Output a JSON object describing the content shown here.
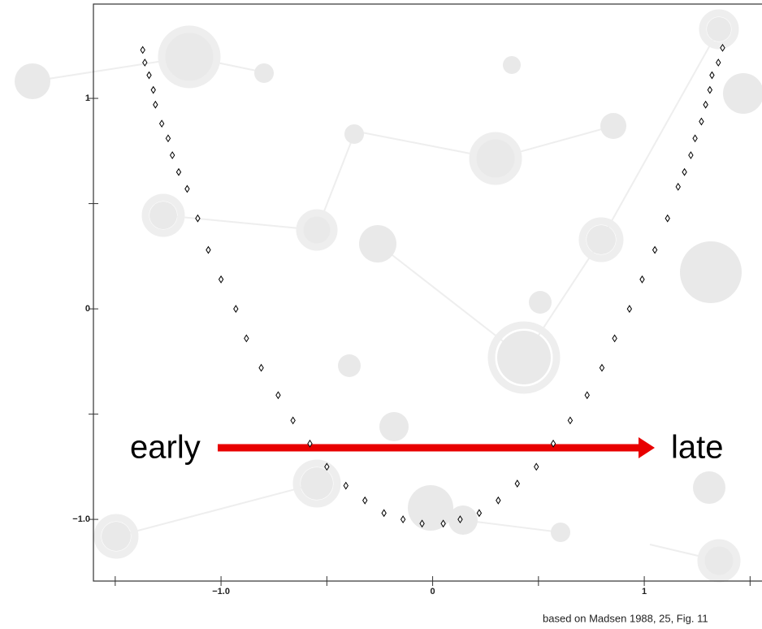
{
  "chart_data": {
    "type": "scatter",
    "annotations": [
      "early",
      "late"
    ],
    "source": "based on Madsen 1988, 25, Fig. 11",
    "marker": "diamond",
    "color": "#000000",
    "x": [
      -1.37,
      -1.36,
      -1.34,
      -1.32,
      -1.31,
      -1.28,
      -1.25,
      -1.23,
      -1.2,
      -1.16,
      -1.11,
      -1.06,
      -1.0,
      -0.93,
      -0.88,
      -0.81,
      -0.73,
      -0.66,
      -0.58,
      -0.5,
      -0.41,
      -0.32,
      -0.23,
      -0.14,
      -0.05,
      0.05,
      0.13,
      0.22,
      0.31,
      0.4,
      0.49,
      0.57,
      0.65,
      0.73,
      0.8,
      0.86,
      0.93,
      0.99,
      1.05,
      1.11,
      1.16,
      1.19,
      1.22,
      1.24,
      1.27,
      1.29,
      1.31,
      1.32,
      1.35,
      1.37
    ],
    "values": [
      1.23,
      1.17,
      1.11,
      1.04,
      0.97,
      0.88,
      0.81,
      0.73,
      0.65,
      0.57,
      0.43,
      0.28,
      0.14,
      0.0,
      -0.14,
      -0.28,
      -0.41,
      -0.53,
      -0.64,
      -0.75,
      -0.84,
      -0.91,
      -0.97,
      -1.0,
      -1.02,
      -1.02,
      -1.0,
      -0.97,
      -0.91,
      -0.83,
      -0.75,
      -0.64,
      -0.53,
      -0.41,
      -0.28,
      -0.14,
      0.0,
      0.14,
      0.28,
      0.43,
      0.58,
      0.65,
      0.73,
      0.81,
      0.89,
      0.97,
      1.04,
      1.11,
      1.17,
      1.24
    ],
    "xlim": [
      -1.603,
      1.6
    ],
    "ylim": [
      -1.293,
      1.448
    ],
    "xticks": [
      {
        "value": -1,
        "label": "−1.0"
      },
      0.0,
      1.0
    ],
    "yticks": [
      {
        "value": -1,
        "label": "−1.0"
      },
      0.0,
      1.0
    ],
    "xminorticks": [
      -1.5,
      -0.5,
      0.5,
      1.5
    ],
    "yminorticks": [
      -0.5,
      0.5
    ]
  }
}
